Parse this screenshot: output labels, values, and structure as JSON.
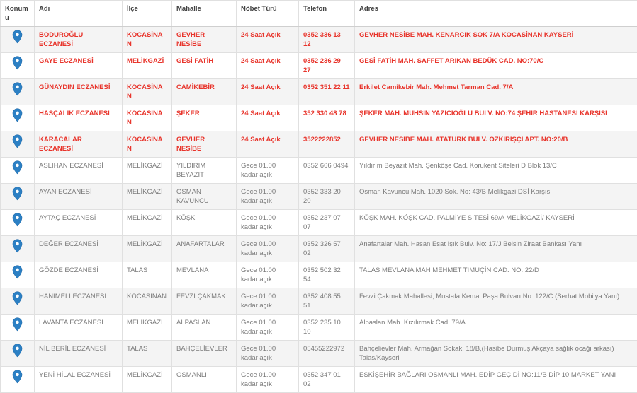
{
  "colors": {
    "highlight_red": "#e8342b",
    "body_gray": "#7b7b7b",
    "header_text": "#404040",
    "pin_blue": "#2c80c4",
    "stripe": "#f4f4f4",
    "border": "#e0e0e0"
  },
  "header": {
    "columns": [
      {
        "id": "konumu",
        "label": "Konumu"
      },
      {
        "id": "adi",
        "label": "Adı"
      },
      {
        "id": "ilce",
        "label": "İlçe"
      },
      {
        "id": "mahalle",
        "label": "Mahalle"
      },
      {
        "id": "nobet",
        "label": "Nöbet Türü"
      },
      {
        "id": "telefon",
        "label": "Telefon"
      },
      {
        "id": "adres",
        "label": "Adres"
      }
    ]
  },
  "icons": {
    "location": "map-pin-icon"
  },
  "rows": [
    {
      "name": "BODUROĞLU ECZANESİ",
      "district": "KOCASİNAN",
      "neighborhood": "GEVHER NESİBE",
      "duty": "24 Saat Açık",
      "phone": "0352 336 13 12",
      "address": "GEVHER NESİBE MAH. KENARCIK SOK 7/A KOCASİNAN KAYSERİ",
      "highlight": true
    },
    {
      "name": "GAYE ECZANESİ",
      "district": "MELİKGAZİ",
      "neighborhood": "GESİ FATİH",
      "duty": "24 Saat Açık",
      "phone": "0352 236 29 27",
      "address": "GESİ FATİH MAH. SAFFET ARIKAN BEDÜK CAD. NO:70/C",
      "highlight": true
    },
    {
      "name": "GÜNAYDIN ECZANESİ",
      "district": "KOCASİNAN",
      "neighborhood": "CAMİKEBİR",
      "duty": "24 Saat Açık",
      "phone": "0352 351 22 11",
      "address": "Erkilet Camikebir Mah. Mehmet Tarman Cad. 7/A",
      "highlight": true
    },
    {
      "name": "HASÇALIK ECZANESİ",
      "district": "KOCASİNAN",
      "neighborhood": "ŞEKER",
      "duty": "24 Saat Açık",
      "phone": "352 330 48 78",
      "address": "ŞEKER MAH. MUHSİN YAZICIOĞLU BULV. NO:74 ŞEHİR HASTANESİ KARŞISI",
      "highlight": true
    },
    {
      "name": "KARACALAR ECZANESİ",
      "district": "KOCASİNAN",
      "neighborhood": "GEVHER NESİBE",
      "duty": "24 Saat Açık",
      "phone": "3522222852",
      "address": "GEVHER NESİBE MAH. ATATÜRK BULV. ÖZKİRİŞÇİ APT. NO:20/B",
      "highlight": true
    },
    {
      "name": "ASLIHAN ECZANESİ",
      "district": "MELİKGAZİ",
      "neighborhood": "YILDIRIM BEYAZIT",
      "duty": "Gece 01.00 kadar açık",
      "phone": "0352 666 0494",
      "address": "Yıldırım Beyazıt Mah. Şenköşe Cad. Korukent Siteleri D Blok 13/C",
      "highlight": false
    },
    {
      "name": "AYAN ECZANESİ",
      "district": "MELİKGAZİ",
      "neighborhood": "OSMAN KAVUNCU",
      "duty": "Gece 01.00 kadar açık",
      "phone": "0352 333 20 20",
      "address": "Osman Kavuncu Mah. 1020 Sok. No: 43/B Melikgazi DSİ Karşısı",
      "highlight": false
    },
    {
      "name": "AYTAÇ ECZANESİ",
      "district": "MELİKGAZİ",
      "neighborhood": "KÖŞK",
      "duty": "Gece 01.00 kadar açık",
      "phone": "0352 237 07 07",
      "address": "KÖŞK MAH. KÖŞK CAD. PALMİYE SİTESİ 69/A MELİKGAZİ/ KAYSERİ",
      "highlight": false
    },
    {
      "name": "DEĞER ECZANESİ",
      "district": "MELİKGAZİ",
      "neighborhood": "ANAFARTALAR",
      "duty": "Gece 01.00 kadar açık",
      "phone": "0352 326 57 02",
      "address": "Anafartalar Mah. Hasan Esat Işık Bulv. No: 17/J Belsin Ziraat Bankası Yanı",
      "highlight": false
    },
    {
      "name": "GÖZDE ECZANESİ",
      "district": "TALAS",
      "neighborhood": "MEVLANA",
      "duty": "Gece 01.00 kadar açık",
      "phone": "0352 502 32 54",
      "address": "TALAS MEVLANA MAH MEHMET TIMUÇİN CAD. NO. 22/D",
      "highlight": false
    },
    {
      "name": "HANIMELİ ECZANESİ",
      "district": "KOCASİNAN",
      "neighborhood": "FEVZİ ÇAKMAK",
      "duty": "Gece 01.00 kadar açık",
      "phone": "0352 408 55 51",
      "address": "Fevzi Çakmak Mahallesi, Mustafa Kemal Paşa Bulvarı No: 122/C (Serhat Mobilya Yanı)",
      "highlight": false
    },
    {
      "name": "LAVANTA ECZANESİ",
      "district": "MELİKGAZİ",
      "neighborhood": "ALPASLAN",
      "duty": "Gece 01.00 kadar açık",
      "phone": "0352 235 10 10",
      "address": "Alpaslan Mah. Kızılırmak Cad. 79/A",
      "highlight": false
    },
    {
      "name": "NİL BERİL ECZANESİ",
      "district": "TALAS",
      "neighborhood": "BAHÇELİEVLER",
      "duty": "Gece 01.00 kadar açık",
      "phone": "05455222972",
      "address": "Bahçelievler Mah. Armağan Sokak, 18/B,(Hasibe Durmuş Akçaya sağlık ocağı arkası) Talas/Kayseri",
      "highlight": false
    },
    {
      "name": "YENİ HİLAL ECZANESİ",
      "district": "MELİKGAZİ",
      "neighborhood": "OSMANLI",
      "duty": "Gece 01.00 kadar açık",
      "phone": "0352 347 01 02",
      "address": "ESKİŞEHİR BAĞLARI OSMANLI MAH. EDİP GEÇİDİ NO:11/B DİP 10 MARKET YANI",
      "highlight": false
    }
  ]
}
